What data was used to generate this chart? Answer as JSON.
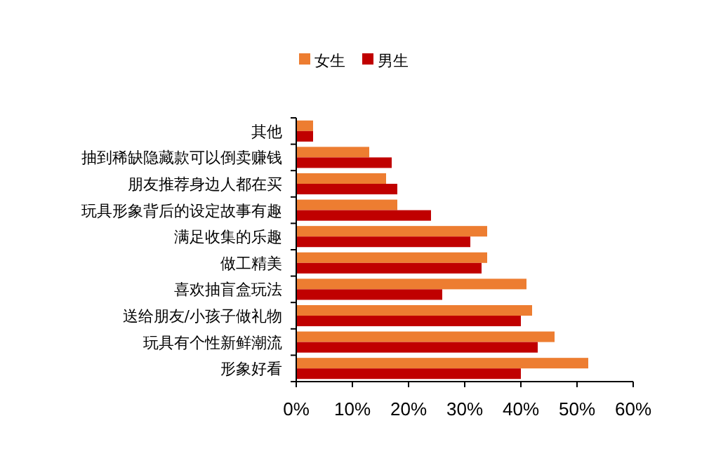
{
  "chart_data": {
    "type": "bar",
    "orientation": "horizontal",
    "categories": [
      "其他",
      "抽到稀缺隐藏款可以倒卖赚钱",
      "朋友推荐身边人都在买",
      "玩具形象背后的设定故事有趣",
      "满足收集的乐趣",
      "做工精美",
      "喜欢抽盲盒玩法",
      "送给朋友/小孩子做礼物",
      "玩具有个性新鲜潮流",
      "形象好看"
    ],
    "series": [
      {
        "name": "女生",
        "color": "#ed7d31",
        "values": [
          3,
          13,
          16,
          18,
          34,
          34,
          41,
          42,
          46,
          52
        ]
      },
      {
        "name": "男生",
        "color": "#c00000",
        "values": [
          3,
          17,
          18,
          24,
          31,
          33,
          26,
          40,
          43,
          40
        ]
      }
    ],
    "xlim": [
      0,
      60
    ],
    "xticks": [
      {
        "value": 0,
        "label": "0%"
      },
      {
        "value": 10,
        "label": "10%"
      },
      {
        "value": 20,
        "label": "20%"
      },
      {
        "value": 30,
        "label": "30%"
      },
      {
        "value": 40,
        "label": "40%"
      },
      {
        "value": 50,
        "label": "50%"
      },
      {
        "value": 60,
        "label": "60%"
      }
    ],
    "legend": "top",
    "grid": false
  }
}
